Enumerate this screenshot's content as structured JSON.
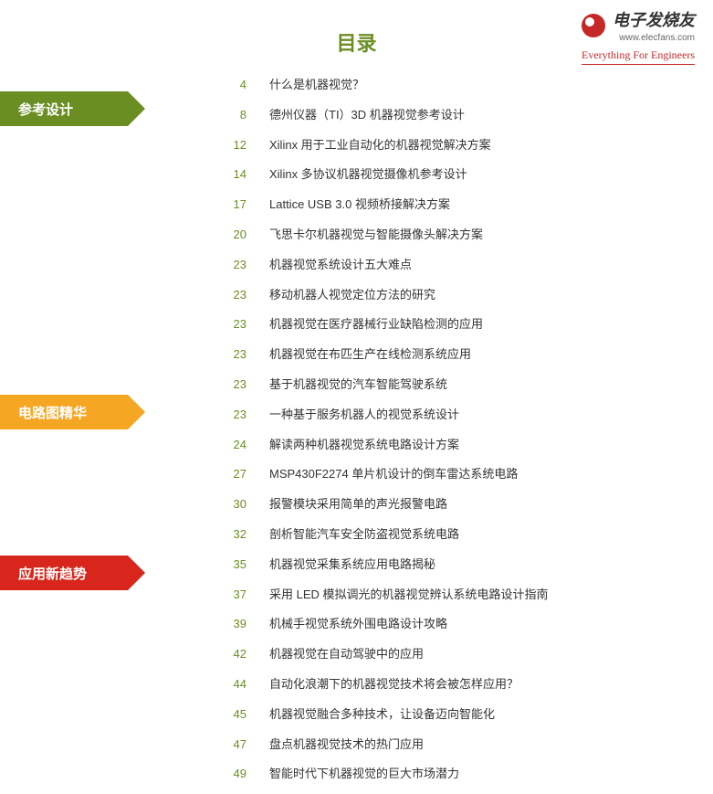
{
  "logo": {
    "brand": "电子发烧友",
    "url": "www.elecfans.com",
    "tagline": "Everything For Engineers"
  },
  "main_title": "目录",
  "sections": [
    {
      "label": "参考设计",
      "color": "#6b8e23"
    },
    {
      "label": "电路图精华",
      "color": "#f5a623"
    },
    {
      "label": "应用新趋势",
      "color": "#d9261c"
    }
  ],
  "entries": [
    {
      "page": "4",
      "title": "什么是机器视觉？"
    },
    {
      "page": "8",
      "title": "德州仪器（TI）3D 机器视觉参考设计"
    },
    {
      "page": "12",
      "title": "Xilinx 用于工业自动化的机器视觉解决方案"
    },
    {
      "page": "14",
      "title": "Xilinx 多协议机器视觉摄像机参考设计"
    },
    {
      "page": "17",
      "title": "Lattice USB 3.0 视频桥接解决方案"
    },
    {
      "page": "20",
      "title": "飞思卡尔机器视觉与智能摄像头解决方案"
    },
    {
      "page": "23",
      "title": "机器视觉系统设计五大难点"
    },
    {
      "page": "23",
      "title": "移动机器人视觉定位方法的研究"
    },
    {
      "page": "23",
      "title": "机器视觉在医疗器械行业缺陷检测的应用"
    },
    {
      "page": "23",
      "title": "机器视觉在布匹生产在线检测系统应用"
    },
    {
      "page": "23",
      "title": "基于机器视觉的汽车智能驾驶系统"
    },
    {
      "page": "23",
      "title": "一种基于服务机器人的视觉系统设计"
    },
    {
      "page": "24",
      "title": "解读两种机器视觉系统电路设计方案"
    },
    {
      "page": "27",
      "title": "MSP430F2274 单片机设计的倒车雷达系统电路"
    },
    {
      "page": "30",
      "title": "报警模块采用简单的声光报警电路"
    },
    {
      "page": "32",
      "title": "剖析智能汽车安全防盗视觉系统电路"
    },
    {
      "page": "35",
      "title": "机器视觉采集系统应用电路揭秘"
    },
    {
      "page": "37",
      "title": "采用 LED 模拟调光的机器视觉辨认系统电路设计指南"
    },
    {
      "page": "39",
      "title": "机械手视觉系统外围电路设计攻略"
    },
    {
      "page": "42",
      "title": "机器视觉在自动驾驶中的应用"
    },
    {
      "page": "44",
      "title": "自动化浪潮下的机器视觉技术将会被怎样应用？"
    },
    {
      "page": "45",
      "title": "机器视觉融合多种技术，让设备迈向智能化"
    },
    {
      "page": "47",
      "title": "盘点机器视觉技术的热门应用"
    },
    {
      "page": "49",
      "title": "智能时代下机器视觉的巨大市场潜力"
    }
  ]
}
